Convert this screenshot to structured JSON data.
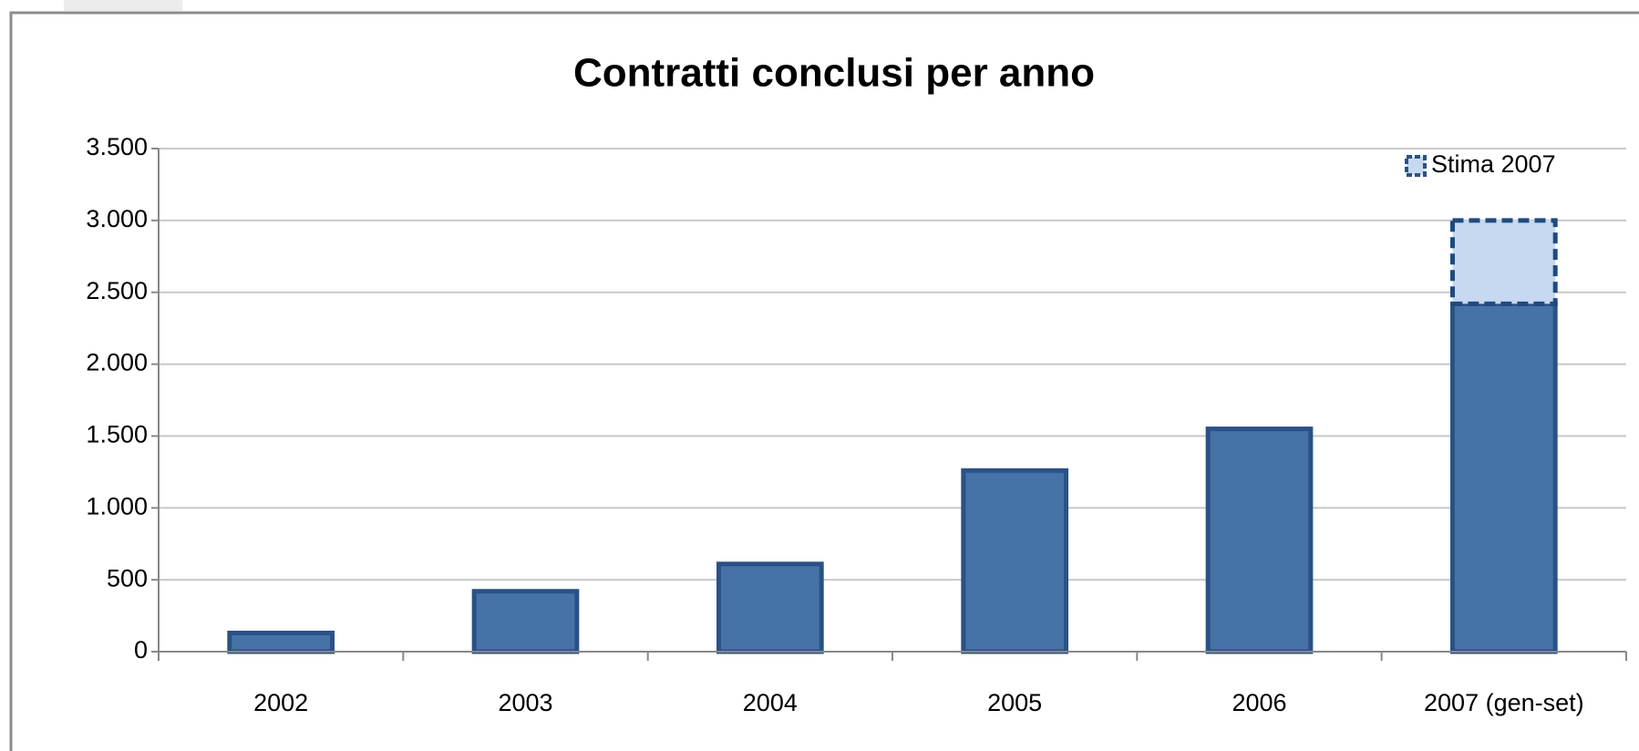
{
  "chart_data": {
    "type": "stacked_bar",
    "title": "Contratti conclusi per anno",
    "categories": [
      "2002",
      "2003",
      "2004",
      "2005",
      "2006",
      "2007 (gen-set)"
    ],
    "series": [
      {
        "color": "#4673a7",
        "values": [
          130,
          420,
          610,
          1260,
          1550,
          2420
        ]
      },
      {
        "name": "Stima 2007",
        "color": "#c6d9f1",
        "values": [
          null,
          null,
          null,
          null,
          null,
          580
        ]
      }
    ],
    "ylim": [
      0,
      3500
    ],
    "yticks": [
      0,
      500,
      {
        "value": 1000,
        "label": "1.000"
      },
      {
        "value": 1500,
        "label": "1.500"
      },
      {
        "value": 2000,
        "label": "2.000"
      },
      {
        "value": 2500,
        "label": "2.500"
      },
      {
        "value": 3000,
        "label": "3.000"
      },
      {
        "value": 3500,
        "label": "3.500"
      }
    ],
    "grid": true,
    "legend": "top-right"
  }
}
